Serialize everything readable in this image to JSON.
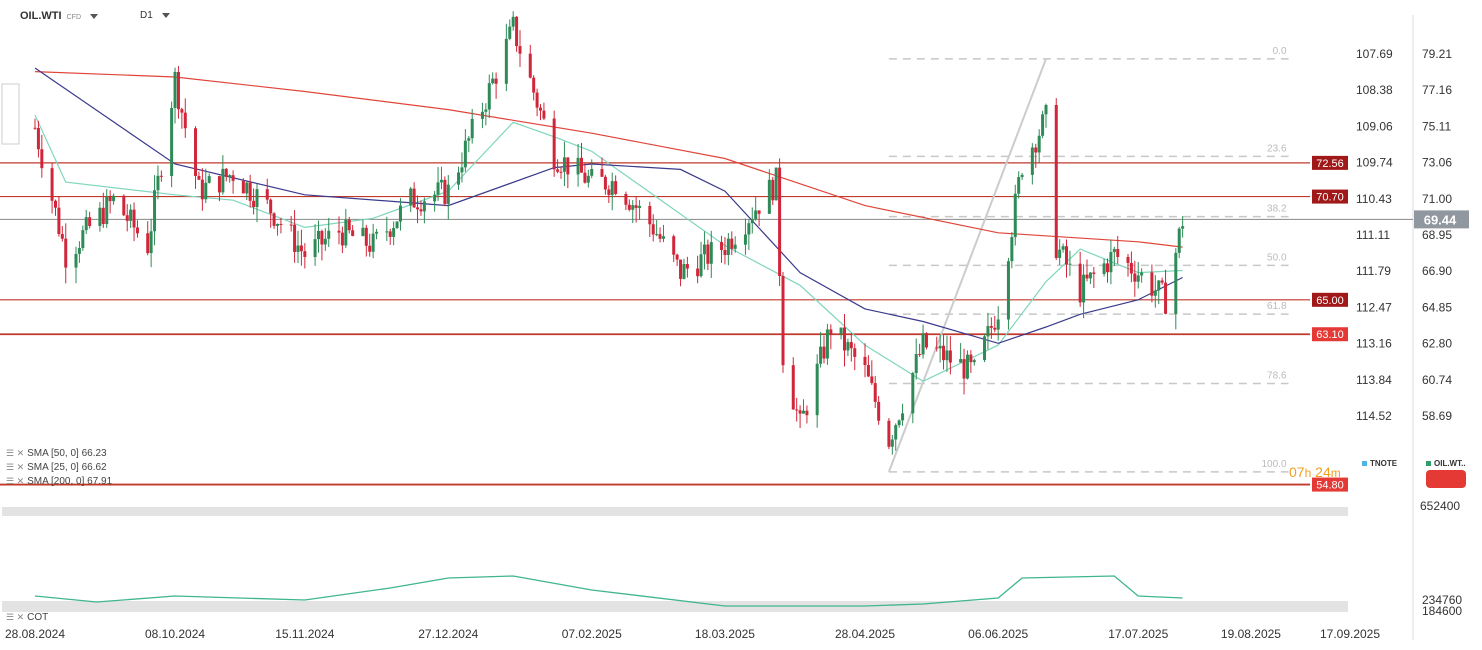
{
  "header": {
    "symbol": "OIL.WTI",
    "symbol_type": "CFD",
    "interval": "D1"
  },
  "indicators": [
    {
      "label": "SMA [50, 0] 66.23",
      "color": "#3a3a8c"
    },
    {
      "label": "SMA [25, 0] 66.62",
      "color": "#7fd6bd"
    },
    {
      "label": "SMA [200, 0] 67.91",
      "color": "#e0453a"
    }
  ],
  "cot_label": "COT",
  "timer": {
    "hours": "07",
    "h": "h",
    "minutes": "24",
    "m": "m"
  },
  "legend_items": [
    {
      "label": "TNOTE",
      "color": "#4fb3e8"
    },
    {
      "label": "OIL.WT..",
      "color": "#2e9e6b"
    }
  ],
  "colors": {
    "up": "#2e8b57",
    "down": "#d0263a",
    "level_line": "#c0392b"
  },
  "chart_data": {
    "type": "candlestick",
    "x_ticks": [
      "28.08.2024",
      "08.10.2024",
      "15.11.2024",
      "27.12.2024",
      "07.02.2025",
      "18.03.2025",
      "28.04.2025",
      "06.06.2025",
      "17.07.2025",
      "19.08.2025",
      "17.09.2025"
    ],
    "right_axis_ticks": [
      "79.21",
      "77.16",
      "75.11",
      "73.06",
      "71.00",
      "68.95",
      "66.90",
      "64.85",
      "62.80",
      "60.74",
      "58.69"
    ],
    "left_axis_ticks": [
      "107.69",
      "108.38",
      "109.06",
      "109.74",
      "110.43",
      "111.11",
      "111.79",
      "112.47",
      "113.16",
      "113.84",
      "114.52"
    ],
    "ylim": [
      54.5,
      81.0
    ],
    "last_price": "69.44",
    "horizontal_levels": [
      {
        "label": "72.56",
        "value": 72.56
      },
      {
        "label": "70.70",
        "value": 70.7
      },
      {
        "label": "65.00",
        "value": 65.0
      },
      {
        "label": "63.10",
        "value": 63.1
      },
      {
        "label": "54.80",
        "value": 54.8
      }
    ],
    "fibonacci": {
      "high": 78.3,
      "low": 55.5,
      "levels": [
        {
          "label": "0.0",
          "ratio": 0.0
        },
        {
          "label": "23.6",
          "ratio": 0.236
        },
        {
          "label": "38.2",
          "ratio": 0.382
        },
        {
          "label": "50.0",
          "ratio": 0.5
        },
        {
          "label": "61.8",
          "ratio": 0.618
        },
        {
          "label": "78.6",
          "ratio": 0.786
        },
        {
          "label": "100.0",
          "ratio": 1.0
        }
      ]
    },
    "price_path": [
      [
        "28.08.2024",
        74.5
      ],
      [
        "06.09.2024",
        67.5
      ],
      [
        "20.09.2024",
        70.5
      ],
      [
        "30.09.2024",
        68.0
      ],
      [
        "08.10.2024",
        77.2
      ],
      [
        "15.10.2024",
        71.0
      ],
      [
        "25.10.2024",
        72.0
      ],
      [
        "05.11.2024",
        70.0
      ],
      [
        "15.11.2024",
        67.5
      ],
      [
        "25.11.2024",
        68.8
      ],
      [
        "05.12.2024",
        68.0
      ],
      [
        "16.12.2024",
        70.5
      ],
      [
        "27.12.2024",
        71.0
      ],
      [
        "10.01.2025",
        77.5
      ],
      [
        "15.01.2025",
        80.0
      ],
      [
        "27.01.2025",
        73.0
      ],
      [
        "07.02.2025",
        71.5
      ],
      [
        "14.02.2025",
        71.5
      ],
      [
        "25.02.2025",
        69.0
      ],
      [
        "05.03.2025",
        66.5
      ],
      [
        "18.03.2025",
        68.0
      ],
      [
        "02.04.2025",
        71.5
      ],
      [
        "04.04.2025",
        62.0
      ],
      [
        "09.04.2025",
        58.0
      ],
      [
        "18.04.2025",
        63.5
      ],
      [
        "28.04.2025",
        61.0
      ],
      [
        "05.05.2025",
        57.3
      ],
      [
        "15.05.2025",
        62.5
      ],
      [
        "30.05.2025",
        61.0
      ],
      [
        "06.06.2025",
        64.5
      ],
      [
        "13.06.2025",
        72.5
      ],
      [
        "20.06.2025",
        75.0
      ],
      [
        "23.06.2025",
        68.0
      ],
      [
        "30.06.2025",
        65.5
      ],
      [
        "10.07.2025",
        67.5
      ],
      [
        "17.07.2025",
        66.5
      ],
      [
        "25.07.2025",
        65.0
      ],
      [
        "30.07.2025",
        69.4
      ]
    ],
    "sma50_path": [
      [
        "28.08.2024",
        77.8
      ],
      [
        "08.10.2024",
        72.5
      ],
      [
        "15.11.2024",
        70.8
      ],
      [
        "27.12.2024",
        70.2
      ],
      [
        "27.01.2025",
        72.3
      ],
      [
        "07.02.2025",
        72.5
      ],
      [
        "05.03.2025",
        72.2
      ],
      [
        "18.03.2025",
        71.0
      ],
      [
        "09.04.2025",
        66.5
      ],
      [
        "28.04.2025",
        64.5
      ],
      [
        "15.05.2025",
        63.8
      ],
      [
        "06.06.2025",
        62.6
      ],
      [
        "20.06.2025",
        63.5
      ],
      [
        "30.06.2025",
        64.2
      ],
      [
        "17.07.2025",
        65.0
      ],
      [
        "30.07.2025",
        66.23
      ]
    ],
    "sma25_path": [
      [
        "28.08.2024",
        75.2
      ],
      [
        "06.09.2024",
        71.5
      ],
      [
        "08.10.2024",
        70.8
      ],
      [
        "25.10.2024",
        70.5
      ],
      [
        "15.11.2024",
        69.0
      ],
      [
        "05.12.2024",
        69.5
      ],
      [
        "27.12.2024",
        71.0
      ],
      [
        "15.01.2025",
        74.8
      ],
      [
        "27.01.2025",
        74.0
      ],
      [
        "07.02.2025",
        73.2
      ],
      [
        "18.03.2025",
        68.0
      ],
      [
        "09.04.2025",
        65.8
      ],
      [
        "28.04.2025",
        62.5
      ],
      [
        "15.05.2025",
        60.5
      ],
      [
        "06.06.2025",
        62.5
      ],
      [
        "20.06.2025",
        66.0
      ],
      [
        "30.06.2025",
        67.8
      ],
      [
        "17.07.2025",
        66.5
      ],
      [
        "30.07.2025",
        66.62
      ]
    ],
    "sma200_path": [
      [
        "28.08.2024",
        77.6
      ],
      [
        "08.10.2024",
        77.3
      ],
      [
        "15.11.2024",
        76.5
      ],
      [
        "27.12.2024",
        75.5
      ],
      [
        "07.02.2025",
        74.2
      ],
      [
        "18.03.2025",
        72.8
      ],
      [
        "28.04.2025",
        70.2
      ],
      [
        "06.06.2025",
        68.7
      ],
      [
        "17.07.2025",
        68.2
      ],
      [
        "30.07.2025",
        67.91
      ]
    ],
    "trendline": [
      [
        "05.05.2025",
        55.5
      ],
      [
        "20.06.2025",
        78.3
      ]
    ],
    "lower_panel": {
      "label": "COT",
      "ticks": [
        "652400",
        "234760",
        "184600"
      ],
      "cot_path": [
        [
          "28.08.2024",
          0.4
        ],
        [
          "15.09.2024",
          0.25
        ],
        [
          "08.10.2024",
          0.4
        ],
        [
          "15.11.2024",
          0.3
        ],
        [
          "10.12.2024",
          0.6
        ],
        [
          "27.12.2024",
          0.85
        ],
        [
          "15.01.2025",
          0.9
        ],
        [
          "07.02.2025",
          0.55
        ],
        [
          "18.03.2025",
          0.15
        ],
        [
          "28.04.2025",
          0.15
        ],
        [
          "15.05.2025",
          0.2
        ],
        [
          "06.06.2025",
          0.35
        ],
        [
          "13.06.2025",
          0.85
        ],
        [
          "10.07.2025",
          0.9
        ],
        [
          "17.07.2025",
          0.4
        ],
        [
          "30.07.2025",
          0.35
        ]
      ]
    }
  }
}
